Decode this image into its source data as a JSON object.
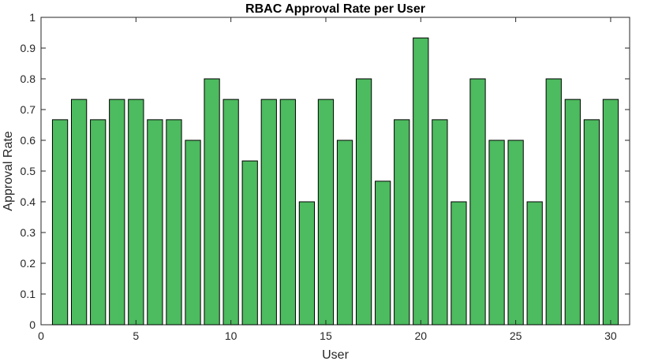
{
  "chart_data": {
    "type": "bar",
    "title": "RBAC Approval Rate per User",
    "xlabel": "User",
    "ylabel": "Approval Rate",
    "x": [
      1,
      2,
      3,
      4,
      5,
      6,
      7,
      8,
      9,
      10,
      11,
      12,
      13,
      14,
      15,
      16,
      17,
      18,
      19,
      20,
      21,
      22,
      23,
      24,
      25,
      26,
      27,
      28,
      29,
      30
    ],
    "values": [
      0.667,
      0.733,
      0.667,
      0.733,
      0.733,
      0.667,
      0.667,
      0.6,
      0.8,
      0.733,
      0.533,
      0.733,
      0.733,
      0.4,
      0.733,
      0.6,
      0.8,
      0.467,
      0.667,
      0.933,
      0.667,
      0.4,
      0.8,
      0.6,
      0.6,
      0.4,
      0.8,
      0.733,
      0.667,
      0.733
    ],
    "xlim": [
      0,
      31
    ],
    "ylim": [
      0,
      1
    ],
    "xticks": [
      0,
      5,
      10,
      15,
      20,
      25,
      30
    ],
    "yticks": [
      0,
      0.1,
      0.2,
      0.3,
      0.4,
      0.5,
      0.6,
      0.7,
      0.8,
      0.9,
      1
    ],
    "ytick_labels": [
      "0",
      "0.1",
      "0.2",
      "0.3",
      "0.4",
      "0.5",
      "0.6",
      "0.7",
      "0.8",
      "0.9",
      "1"
    ],
    "grid": false,
    "bar_color": "#4dbb5f",
    "edge_color": "#000000"
  }
}
